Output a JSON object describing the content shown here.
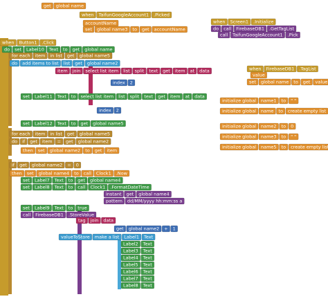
{
  "blocks": [
    {
      "rows": [
        [
          "get",
          "global name"
        ]
      ]
    },
    {
      "rows": [
        [
          "when",
          "TaifunGoogleAccount1",
          ".Picked"
        ],
        [
          "accountName"
        ],
        [
          "set",
          "global name3",
          "to",
          "get",
          "accountName"
        ]
      ]
    },
    {
      "rows": [
        [
          "when",
          "Screen1",
          ".Initialize"
        ],
        [
          "do",
          "call",
          "FirebaseDB1",
          ".GetTagList"
        ],
        [
          "call",
          "TaifunGoogleAccount1",
          ".Pick"
        ]
      ]
    },
    {
      "rows": [
        [
          "when",
          "Button1",
          ".Click"
        ],
        [
          "do",
          "set",
          "Label10",
          "Text",
          "to",
          "get",
          "global name"
        ],
        [
          "for each",
          "item",
          "in list",
          "get",
          "global name5"
        ],
        [
          "do",
          "add items to list",
          "list",
          "get",
          "global name2"
        ],
        [
          "item",
          "join",
          "select list item",
          "list",
          "split",
          "text",
          "get",
          "item",
          "at",
          "data"
        ],
        [
          "index",
          "2"
        ],
        [
          "set",
          "Label11",
          "Text",
          "to",
          "select list item",
          "list",
          "split",
          "text",
          "get",
          "item",
          "at",
          "data"
        ],
        [
          "index",
          "2"
        ],
        [
          "set",
          "Label12",
          "Text",
          "to",
          "get",
          "global name5"
        ],
        [
          "for each",
          "item",
          "in list",
          "get",
          "global name5"
        ],
        [
          "do",
          "if",
          "get",
          "item",
          "=",
          "get",
          "global name2"
        ],
        [
          "then",
          "set",
          "global name2",
          "to",
          "get",
          "item"
        ],
        [
          "if",
          "get",
          "global name2",
          "=",
          "0"
        ],
        [
          "then",
          "set",
          "global name4",
          "to",
          "call",
          "Clock1",
          ".Now"
        ],
        [
          "set",
          "Label7",
          "Text",
          "to",
          "get",
          "global name4"
        ],
        [
          "set",
          "Label8",
          "Text",
          "to",
          "call",
          "Clock1",
          ".FormatDateTime"
        ],
        [
          "instant",
          "get",
          "global name4"
        ],
        [
          "pattern",
          "dd/MM/yyyy hh:mm:ss a"
        ],
        [
          "set",
          "Label9",
          "Text",
          "to",
          "true"
        ],
        [
          "call",
          "FirebaseDB1",
          ".StoreValue"
        ],
        [
          "tag",
          "join",
          "data"
        ],
        [
          "get",
          "global name2",
          "+",
          "1"
        ],
        [
          "valueToStore",
          "make a list",
          "Label1",
          "Text"
        ],
        [
          "Label2",
          "Text"
        ],
        [
          "Label3",
          "Text"
        ],
        [
          "Label4",
          "Text"
        ],
        [
          "Label5",
          "Text"
        ],
        [
          "Label6",
          "Text"
        ],
        [
          "Label7",
          "Text"
        ],
        [
          "Label8",
          "Text"
        ]
      ]
    },
    {
      "rows": [
        [
          "when",
          "FirebaseDB1",
          ".TagList"
        ],
        [
          "value"
        ],
        [
          "set",
          "global name",
          "to",
          "get",
          "value"
        ]
      ]
    },
    {
      "rows": [
        [
          "initialize global",
          "name1",
          "to",
          "\" \""
        ],
        [
          "initialize global",
          "name",
          "to",
          "create empty list"
        ],
        [
          "initialize global",
          "name2",
          "to",
          "0"
        ],
        [
          "initialize global",
          "name3",
          "to",
          "\" \""
        ],
        [
          "initialize global",
          "name5",
          "to",
          "create empty list"
        ]
      ]
    }
  ]
}
